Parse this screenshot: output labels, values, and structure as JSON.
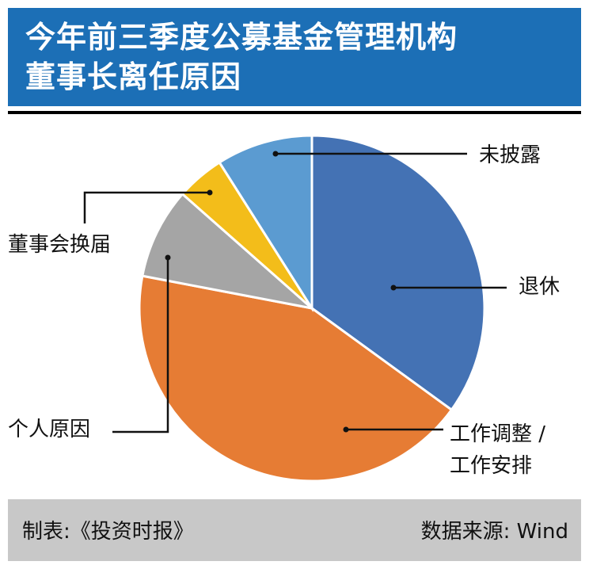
{
  "header": {
    "title_line1": "今年前三季度公募基金管理机构",
    "title_line2": "董事长离任原因"
  },
  "footer": {
    "source_left": "制表:《投资时报》",
    "source_right": "数据来源: Wind"
  },
  "chart_data": {
    "type": "pie",
    "title": "今年前三季度公募基金管理机构董事长离任原因",
    "slices": [
      {
        "label": "退休",
        "value": 35,
        "color": "#4472b4"
      },
      {
        "label": "工作调整 / 工作安排",
        "value": 43,
        "color": "#e67c34"
      },
      {
        "label": "个人原因",
        "value": 8.5,
        "color": "#a5a5a5"
      },
      {
        "label": "董事会换届",
        "value": 4.5,
        "color": "#f3bd1a"
      },
      {
        "label": "未披露",
        "value": 9,
        "color": "#5b9bd1"
      }
    ],
    "legend": "none"
  },
  "labels": {
    "retire": "退休",
    "work_line1": "工作调整 /",
    "work_line2": "工作安排",
    "personal": "个人原因",
    "board": "董事会换届",
    "undisclosed": "未披露"
  }
}
